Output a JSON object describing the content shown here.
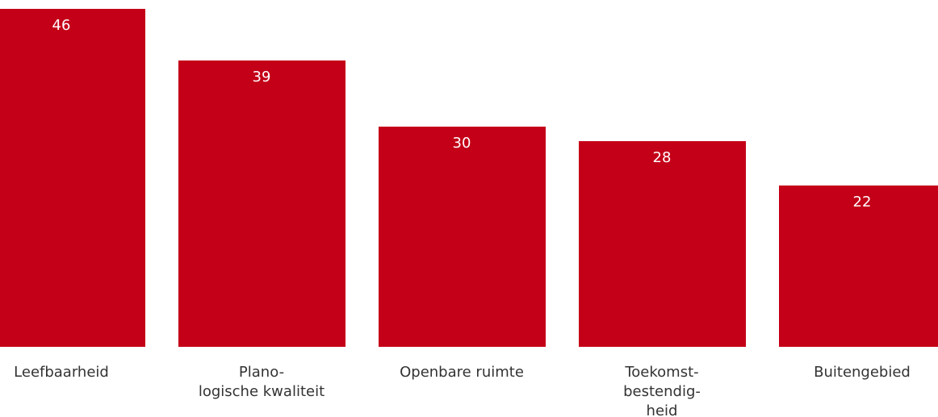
{
  "chart_data": {
    "type": "bar",
    "categories": [
      "Leefbaarheid",
      "Plano-\nlogische kwaliteit",
      "Openbare ruimte",
      "Toekomst-\nbestendig-\nheid",
      "Buitengebied"
    ],
    "values": [
      46,
      39,
      30,
      28,
      22
    ],
    "color": "#c40018"
  }
}
